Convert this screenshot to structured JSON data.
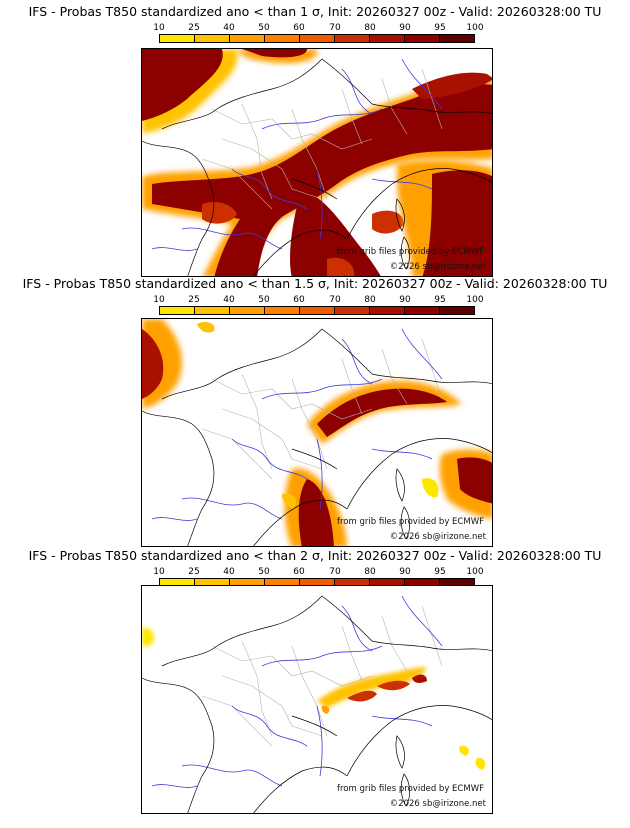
{
  "panels": [
    {
      "title": "IFS - Probas T850  standardized ano < than 1 σ, Init: 20260327 00z - Valid: 20260328:00 TU"
    },
    {
      "title": "IFS - Probas T850  standardized ano < than 1.5 σ, Init: 20260327 00z - Valid: 20260328:00 TU"
    },
    {
      "title": "IFS - Probas T850  standardized ano < than 2 σ, Init: 20260327 00z - Valid: 20260328:00 TU"
    }
  ],
  "colorbar": {
    "ticks": [
      "10",
      "25",
      "40",
      "50",
      "60",
      "70",
      "80",
      "90",
      "95",
      "100"
    ],
    "colors": [
      "#ffe600",
      "#ffc200",
      "#ffa000",
      "#ff8000",
      "#f05a00",
      "#cc3000",
      "#a81000",
      "#8c0000",
      "#600000"
    ]
  },
  "map_credits": {
    "line1": "from grib files provided by ECMWF",
    "line2": "©2026 sb@irizone.net"
  },
  "map_colors": {
    "border": "#000000",
    "rivers": "#3c3cdc",
    "regions": "#b4b4b4",
    "background": "#ffffff"
  }
}
